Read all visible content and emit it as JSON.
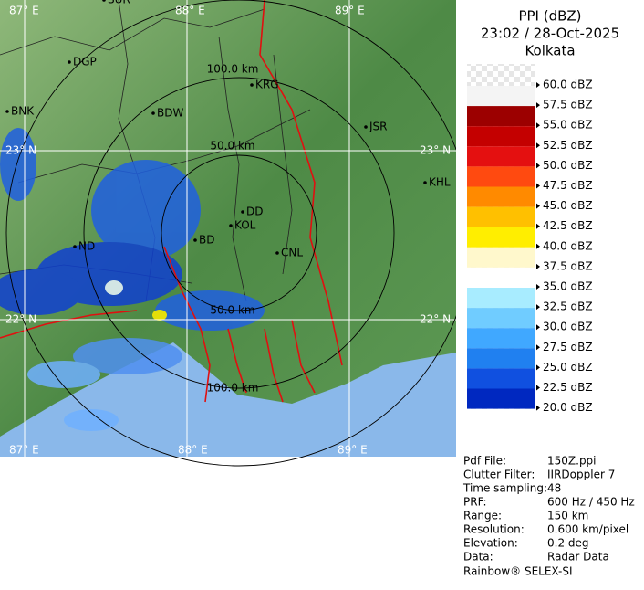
{
  "header": {
    "product": "PPI (dBZ)",
    "time": "23:02 / 28-Oct-2025",
    "site": "Kolkata"
  },
  "map": {
    "grid_labels": [
      "87° E",
      "88° E",
      "89° E",
      "23° N",
      "23° N",
      "22° N",
      "22° N",
      "87° E",
      "88° E",
      "89° E"
    ],
    "range_labels": [
      "100.0 km",
      "50.0 km",
      "50.0 km",
      "100.0 km"
    ],
    "cities": [
      "SUR",
      "DGP",
      "BNK",
      "BDW",
      "KRG",
      "JSR",
      "KHL",
      "DD",
      "KOL",
      "BD",
      "ND",
      "CNL"
    ]
  },
  "legend": {
    "labels": [
      "60.0 dBZ",
      "57.5 dBZ",
      "55.0 dBZ",
      "52.5 dBZ",
      "50.0 dBZ",
      "47.5 dBZ",
      "45.0 dBZ",
      "42.5 dBZ",
      "40.0 dBZ",
      "37.5 dBZ",
      "35.0 dBZ",
      "32.5 dBZ",
      "30.0 dBZ",
      "27.5 dBZ",
      "25.0 dBZ",
      "22.5 dBZ",
      "20.0 dBZ"
    ],
    "colors": [
      "#f4f4f4",
      "#9c0000",
      "#c40000",
      "#e41010",
      "#ff4a10",
      "#ff8a00",
      "#ffc000",
      "#ffee00",
      "#fff8cc",
      "#ffffff",
      "#a8ecff",
      "#70ccff",
      "#40a8ff",
      "#2080f0",
      "#1050e0",
      "#0028c0",
      "#001090"
    ]
  },
  "info": {
    "rows": [
      [
        "Pdf File:",
        "150Z.ppi"
      ],
      [
        "Clutter Filter:",
        "IIRDoppler 7"
      ],
      [
        "Time sampling:",
        "48"
      ],
      [
        "PRF:",
        "600 Hz / 450 Hz"
      ],
      [
        "Range:",
        "150 km"
      ],
      [
        "Resolution:",
        "0.600 km/pixel"
      ],
      [
        "Elevation:",
        "0.2 deg"
      ],
      [
        "Data:",
        "Radar Data"
      ]
    ],
    "footer": "Rainbow® SELEX-SI"
  }
}
